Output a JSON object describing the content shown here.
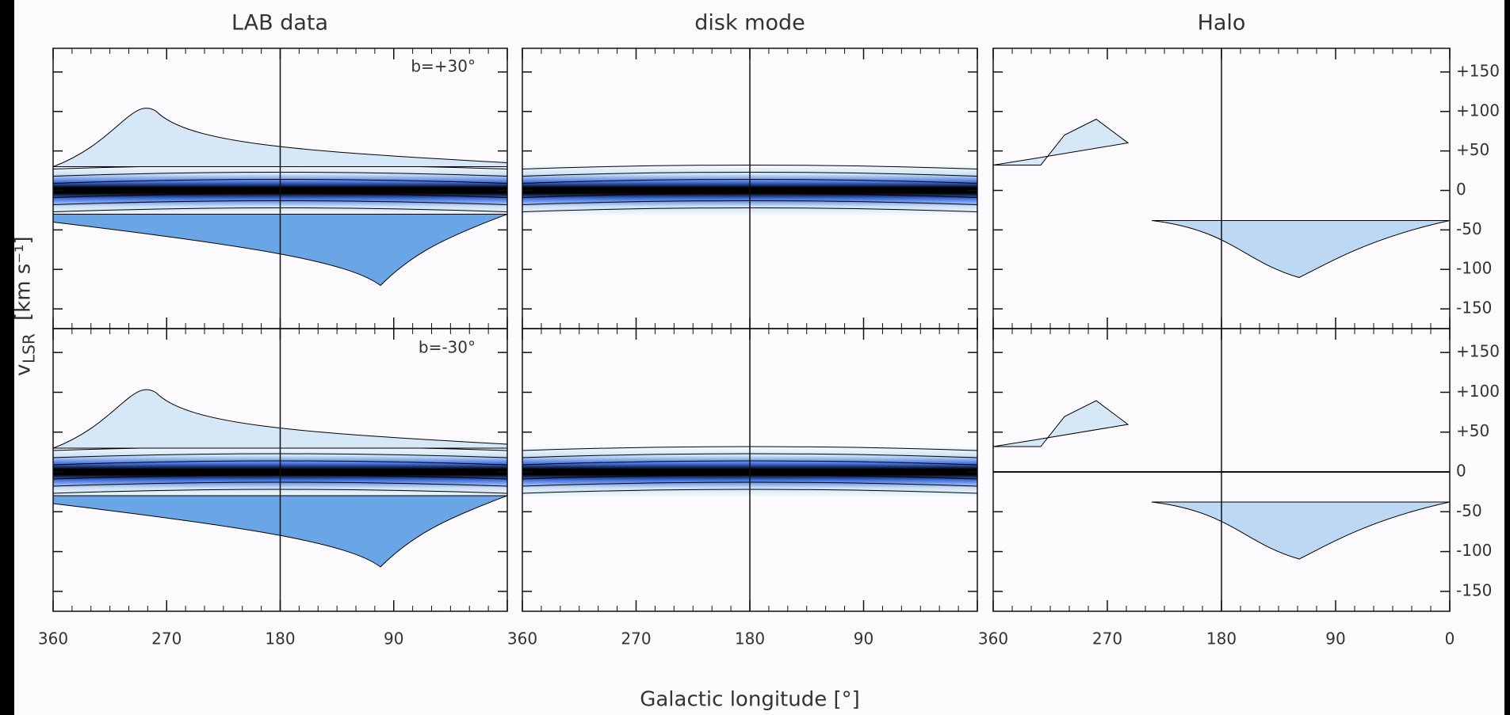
{
  "chart_data": {
    "type": "contour",
    "titles": [
      "LAB data",
      "disk mode",
      "Halo"
    ],
    "annotations": [
      "b=+30°",
      "b=-30°"
    ],
    "x_label": "Galactic longitude [°]",
    "y_label": "v",
    "y_label_sub": "LSR",
    "y_label_unit": "[km s⁻¹]",
    "xlim": [
      360,
      0
    ],
    "xticks": [
      360,
      270,
      180,
      90,
      0
    ],
    "ylim": [
      -175,
      180
    ],
    "yticks": [
      {
        "value": 150,
        "label": "+150"
      },
      {
        "value": 100,
        "label": "+100"
      },
      {
        "value": 50,
        "label": "+50"
      },
      0,
      -50,
      -100,
      -150
    ]
  }
}
